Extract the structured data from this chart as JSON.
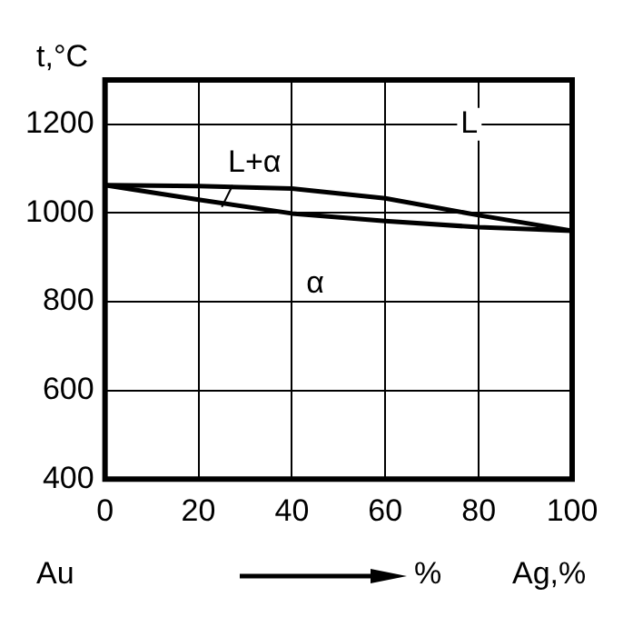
{
  "chart_data": {
    "type": "line",
    "ylabel": "t,°C",
    "x": [
      0,
      20,
      40,
      60,
      80,
      100
    ],
    "series": [
      {
        "color": "#000000",
        "values": [
          1063,
          1061,
          1055,
          1033,
          995,
          960
        ]
      },
      {
        "color": "#000000",
        "values": [
          1063,
          1030,
          999,
          982,
          968,
          960
        ]
      }
    ],
    "xlim": [
      0,
      100
    ],
    "xticks": [
      0,
      20,
      40,
      60,
      80,
      100
    ],
    "ylim": [
      400,
      1300
    ],
    "yticks": [
      400,
      600,
      800,
      1000,
      1200
    ],
    "grid": true,
    "legend": false,
    "marker": "none",
    "line_style": "solid",
    "annotations": [
      {
        "text": "L",
        "x": 78,
        "y": 1200
      },
      {
        "text": "L+α",
        "x": 32,
        "y": 1112
      },
      {
        "text": "α",
        "x": 45,
        "y": 840
      },
      "Au",
      "%",
      "Ag,%"
    ]
  }
}
